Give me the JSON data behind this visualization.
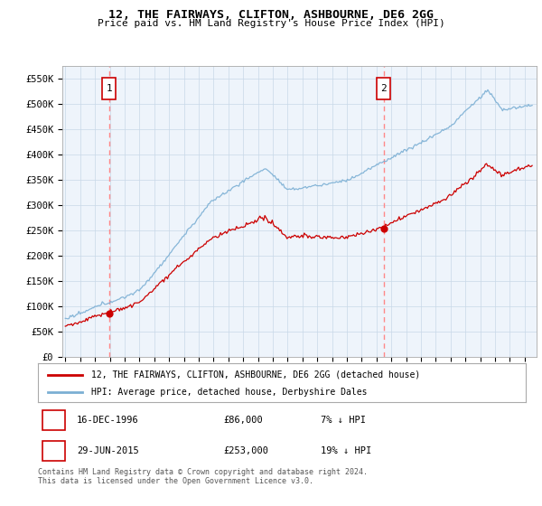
{
  "title": "12, THE FAIRWAYS, CLIFTON, ASHBOURNE, DE6 2GG",
  "subtitle": "Price paid vs. HM Land Registry's House Price Index (HPI)",
  "hpi_label": "HPI: Average price, detached house, Derbyshire Dales",
  "price_label": "12, THE FAIRWAYS, CLIFTON, ASHBOURNE, DE6 2GG (detached house)",
  "sale1_date": "16-DEC-1996",
  "sale1_price": 86000,
  "sale1_note": "7% ↓ HPI",
  "sale2_date": "29-JUN-2015",
  "sale2_price": 253000,
  "sale2_note": "19% ↓ HPI",
  "sale1_year": 1996.96,
  "sale2_year": 2015.49,
  "hpi_color": "#7BAFD4",
  "price_color": "#CC0000",
  "dashed_color": "#FF8888",
  "background_chart": "#EEF4FB",
  "ylim_max": 575000,
  "xlim_start": 1993.8,
  "xlim_end": 2025.8,
  "footer": "Contains HM Land Registry data © Crown copyright and database right 2024.\nThis data is licensed under the Open Government Licence v3.0.",
  "yticks": [
    0,
    50000,
    100000,
    150000,
    200000,
    250000,
    300000,
    350000,
    400000,
    450000,
    500000,
    550000
  ],
  "ytick_labels": [
    "£0",
    "£50K",
    "£100K",
    "£150K",
    "£200K",
    "£250K",
    "£300K",
    "£350K",
    "£400K",
    "£450K",
    "£500K",
    "£550K"
  ]
}
